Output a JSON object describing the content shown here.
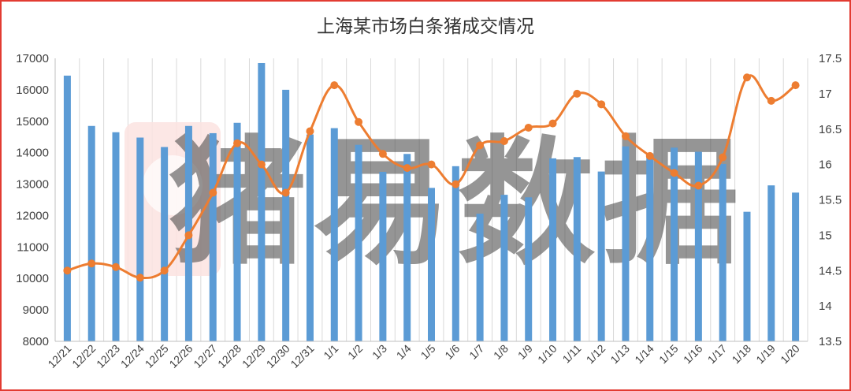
{
  "chart_data": {
    "type": "bar+line",
    "title": "上海某市场白条猪成交情况",
    "categories": [
      "12/21",
      "12/22",
      "12/23",
      "12/24",
      "12/25",
      "12/26",
      "12/27",
      "12/28",
      "12/29",
      "12/30",
      "12/31",
      "1/1",
      "1/2",
      "1/3",
      "1/4",
      "1/5",
      "1/6",
      "1/7",
      "1/8",
      "1/9",
      "1/10",
      "1/11",
      "1/12",
      "1/13",
      "1/14",
      "1/15",
      "1/16",
      "1/17",
      "1/18",
      "1/19",
      "1/20"
    ],
    "series": [
      {
        "type": "bar",
        "axis": "left",
        "color": "#5b9bd5",
        "values": [
          16450,
          14850,
          14650,
          14480,
          14180,
          14850,
          14620,
          14950,
          16850,
          16000,
          14580,
          14780,
          14250,
          13390,
          13960,
          12880,
          13570,
          12060,
          12660,
          12580,
          13820,
          13860,
          13400,
          14200,
          13980,
          14160,
          14030,
          13640,
          12120,
          12960,
          12730
        ]
      },
      {
        "type": "line",
        "axis": "right",
        "color": "#ed7d31",
        "values": [
          14.5,
          14.6,
          14.55,
          14.4,
          14.5,
          15.0,
          15.6,
          16.3,
          16.0,
          15.6,
          16.47,
          17.12,
          16.6,
          16.15,
          15.95,
          16.0,
          15.72,
          16.27,
          16.33,
          16.52,
          16.58,
          17.0,
          16.85,
          16.4,
          16.12,
          15.88,
          15.7,
          16.1,
          17.23,
          16.9,
          17.12
        ]
      }
    ],
    "y_left": {
      "min": 8000,
      "max": 17000,
      "step": 1000,
      "ticks": [
        "8000",
        "9000",
        "10000",
        "11000",
        "12000",
        "13000",
        "14000",
        "15000",
        "16000",
        "17000"
      ]
    },
    "y_right": {
      "min": 13.5,
      "max": 17.5,
      "step": 0.5,
      "ticks": [
        "13.5",
        "14",
        "14.5",
        "15",
        "15.5",
        "16",
        "16.5",
        "17",
        "17.5"
      ]
    },
    "grid": "vertical",
    "legend": "none"
  },
  "watermark": {
    "text": "猪易数据"
  },
  "colors": {
    "frame": "#e23b32",
    "bar": "#5b9bd5",
    "line": "#ed7d31",
    "grid": "#d9d9d9"
  }
}
